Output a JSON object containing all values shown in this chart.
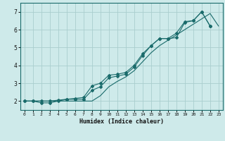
{
  "xlabel": "Humidex (Indice chaleur)",
  "background_color": "#ceeaea",
  "grid_color": "#aacece",
  "line_color": "#1a6b6b",
  "xlim": [
    -0.5,
    23.5
  ],
  "ylim": [
    1.5,
    7.5
  ],
  "xticks": [
    0,
    1,
    2,
    3,
    4,
    5,
    6,
    7,
    8,
    9,
    10,
    11,
    12,
    13,
    14,
    15,
    16,
    17,
    18,
    19,
    20,
    21,
    22,
    23
  ],
  "yticks": [
    2,
    3,
    4,
    5,
    6,
    7
  ],
  "line1_x": [
    0,
    1,
    2,
    3,
    4,
    5,
    6,
    7,
    8,
    9,
    10,
    11,
    12,
    13,
    14,
    15,
    16,
    17,
    18,
    19,
    20,
    21,
    22
  ],
  "line1_y": [
    2.0,
    2.0,
    2.0,
    2.0,
    2.05,
    2.1,
    2.15,
    2.2,
    2.85,
    3.0,
    3.45,
    3.5,
    3.6,
    4.0,
    4.65,
    5.1,
    5.5,
    5.5,
    5.8,
    6.45,
    6.5,
    7.0,
    6.2
  ],
  "line2_x": [
    0,
    1,
    2,
    3,
    4,
    5,
    6,
    7,
    8,
    9,
    10,
    11,
    12,
    13,
    14,
    15,
    16,
    17,
    18,
    19,
    20,
    21,
    22,
    23
  ],
  "line2_y": [
    2.0,
    2.0,
    2.0,
    2.0,
    2.0,
    2.0,
    2.0,
    2.0,
    2.0,
    2.3,
    2.8,
    3.1,
    3.35,
    3.7,
    4.2,
    4.7,
    5.1,
    5.4,
    5.7,
    6.0,
    6.3,
    6.6,
    6.9,
    6.2
  ],
  "line3_x": [
    0,
    1,
    2,
    3,
    4,
    5,
    6,
    7,
    8,
    9,
    10,
    11,
    12,
    13,
    14,
    15,
    16,
    17,
    18,
    19,
    20,
    21,
    22
  ],
  "line3_y": [
    2.0,
    2.0,
    1.9,
    1.9,
    2.0,
    2.1,
    2.1,
    2.1,
    2.6,
    2.8,
    3.3,
    3.4,
    3.5,
    3.9,
    4.55,
    5.1,
    5.5,
    5.5,
    5.55,
    6.4,
    6.5,
    7.0,
    6.2
  ]
}
